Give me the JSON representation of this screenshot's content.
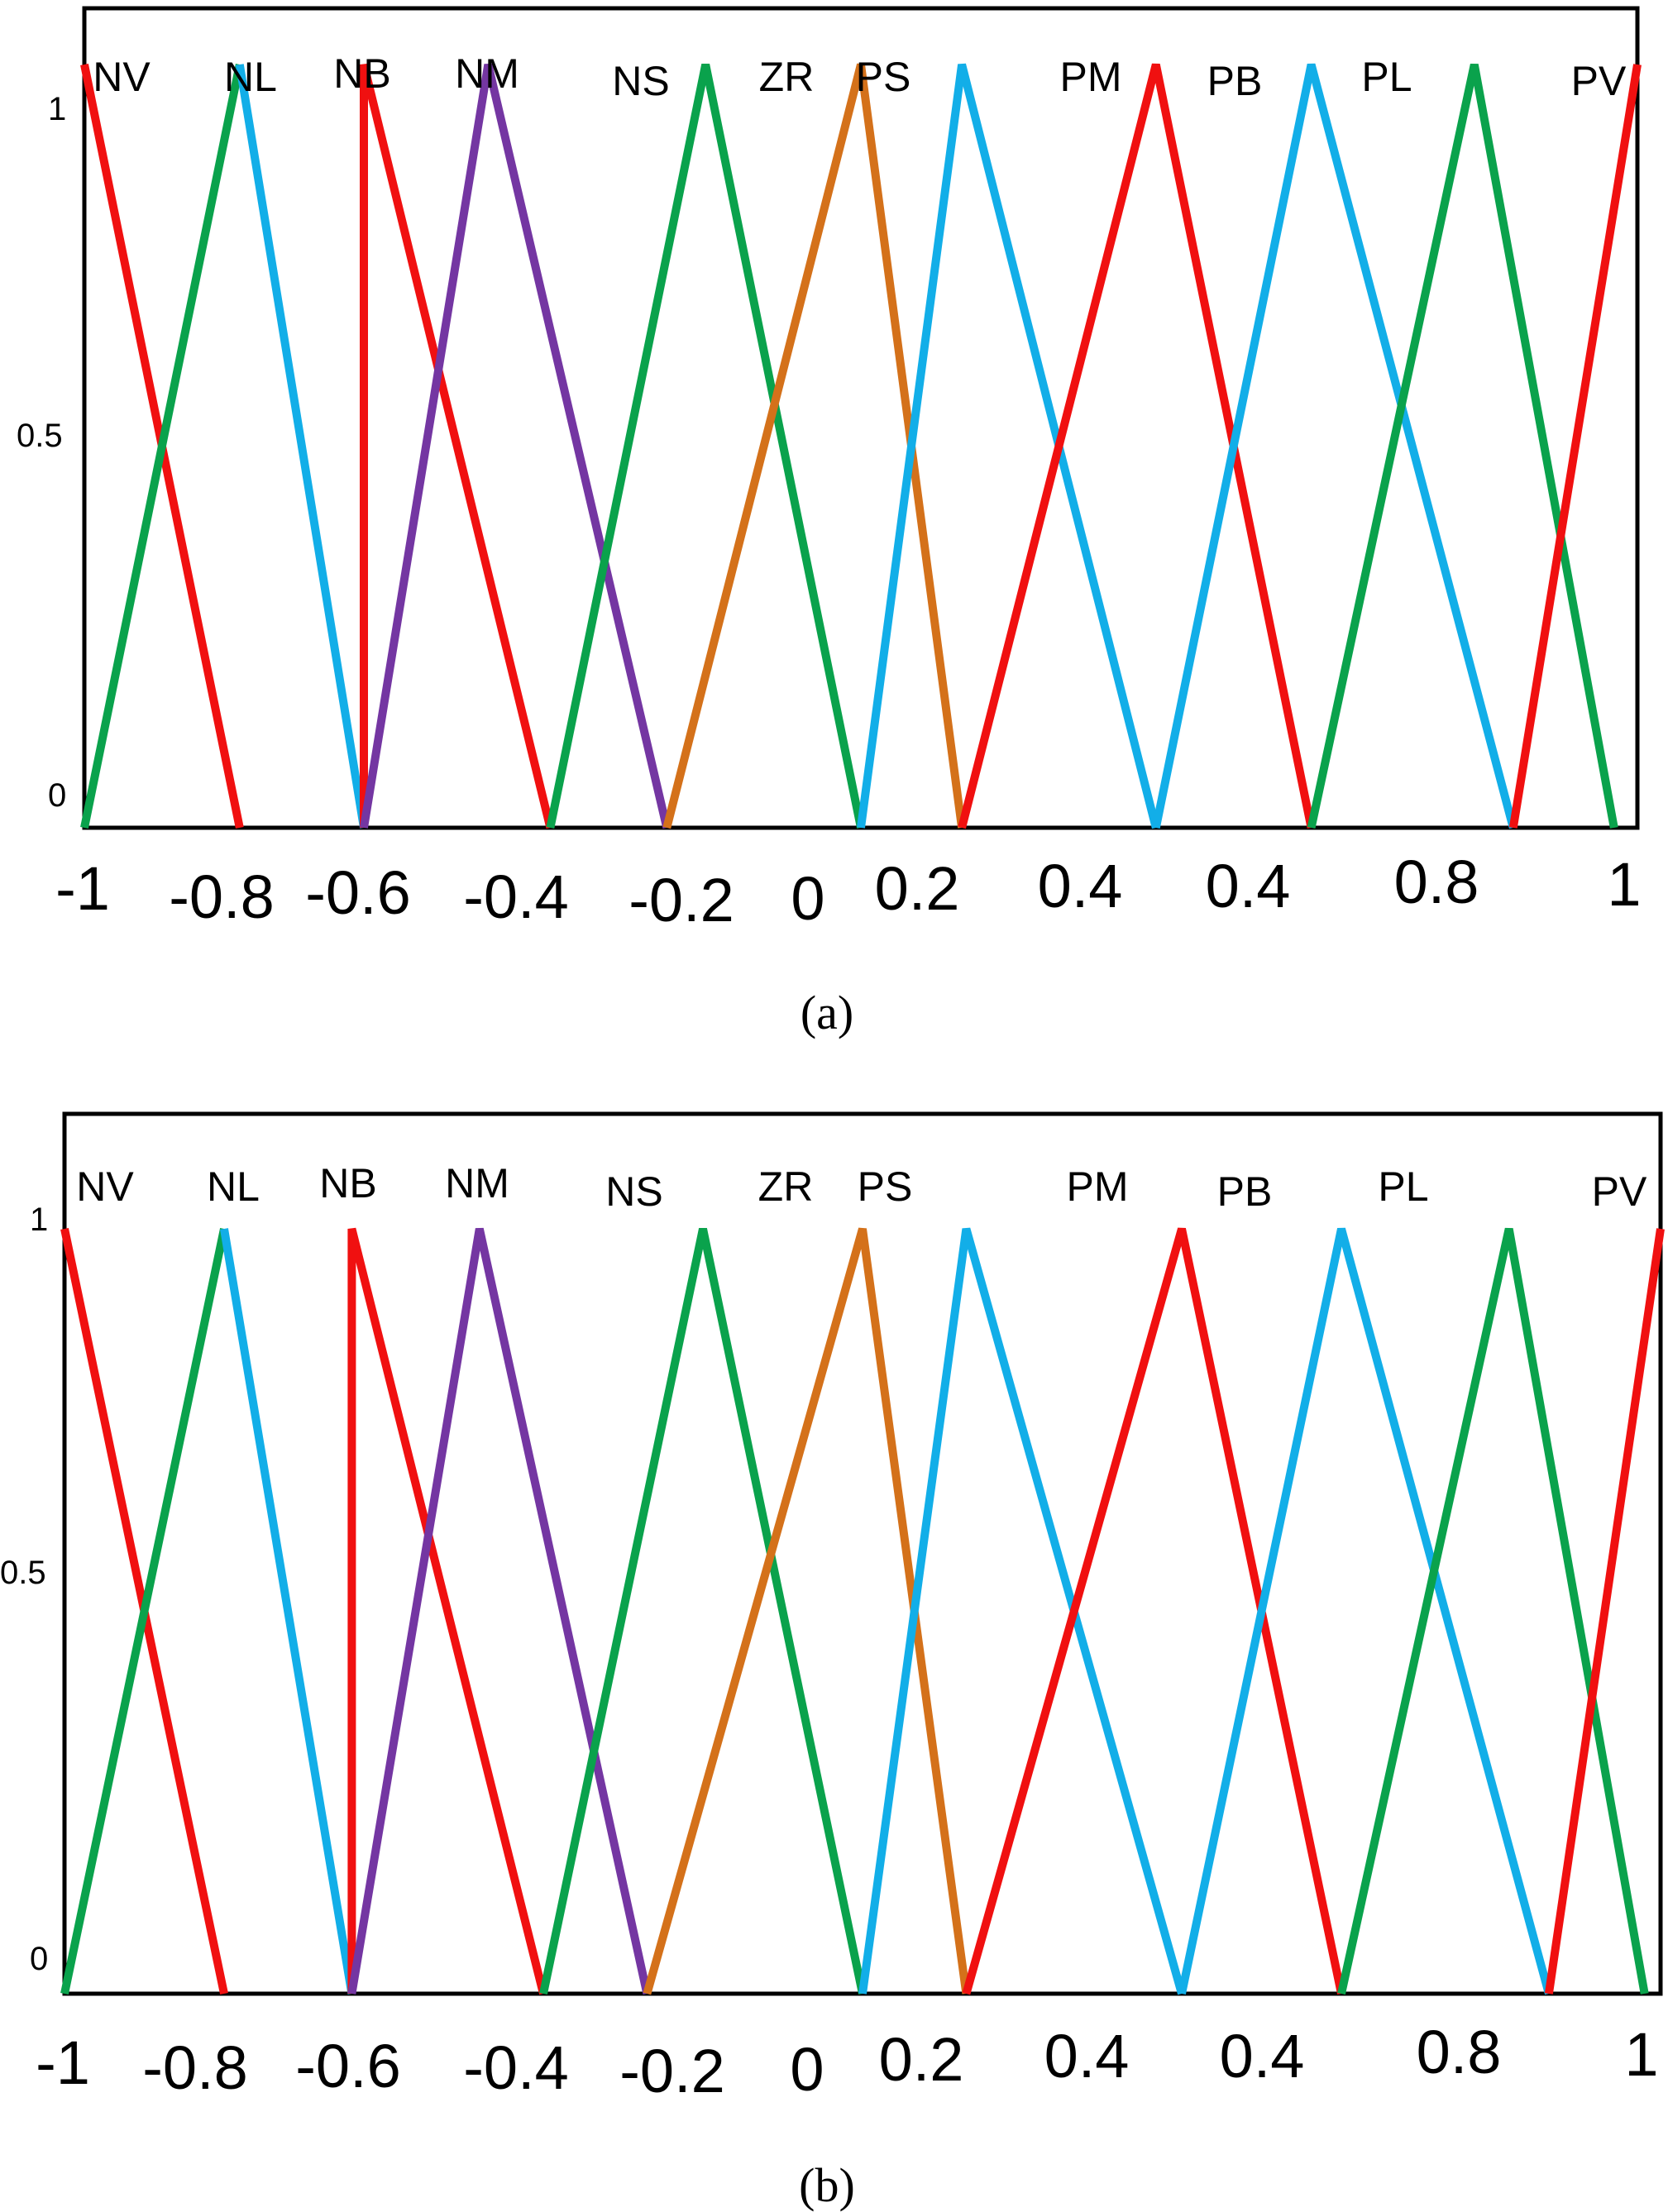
{
  "colors": {
    "red": "#f01010",
    "green": "#0aa24c",
    "blue": "#12aee8",
    "purple": "#7436a2",
    "orange": "#d4711a"
  },
  "chart_data": [
    {
      "type": "line",
      "caption": "(a)",
      "x_tick_labels": [
        "-1",
        "-0.8",
        "-0.6",
        "-0.4",
        "-0.2",
        "0",
        "0.2",
        "0.4",
        "0.4",
        "0.8",
        "1"
      ],
      "y_tick_labels": [
        "0",
        "0.5",
        "1"
      ],
      "ylim": [
        0,
        1
      ],
      "grid": false,
      "series": [
        {
          "name": "NV",
          "color": "red",
          "points": [
            [
              -1,
              1
            ],
            [
              -0.8,
              0
            ]
          ]
        },
        {
          "name": "NL",
          "color": "green",
          "points": [
            [
              -1,
              0
            ],
            [
              -0.8,
              1
            ]
          ]
        },
        {
          "name": "NL",
          "color": "blue",
          "points": [
            [
              -0.8,
              1
            ],
            [
              -0.64,
              0
            ]
          ]
        },
        {
          "name": "NB",
          "color": "red",
          "points": [
            [
              -0.64,
              0
            ],
            [
              -0.64,
              1
            ],
            [
              -0.4,
              0
            ]
          ]
        },
        {
          "name": "NM",
          "color": "purple",
          "points": [
            [
              -0.64,
              0
            ],
            [
              -0.48,
              1
            ],
            [
              -0.25,
              0
            ]
          ]
        },
        {
          "name": "NS",
          "color": "green",
          "points": [
            [
              -0.4,
              0
            ],
            [
              -0.2,
              1
            ],
            [
              0,
              0
            ]
          ]
        },
        {
          "name": "ZR",
          "color": "orange",
          "points": [
            [
              -0.25,
              0
            ],
            [
              0,
              1
            ],
            [
              0.13,
              0
            ]
          ]
        },
        {
          "name": "PS",
          "color": "blue",
          "points": [
            [
              0,
              0
            ],
            [
              0.13,
              1
            ],
            [
              0.38,
              0
            ]
          ]
        },
        {
          "name": "PM",
          "color": "red",
          "points": [
            [
              0.13,
              0
            ],
            [
              0.38,
              1
            ],
            [
              0.58,
              0
            ]
          ]
        },
        {
          "name": "PB",
          "color": "blue",
          "points": [
            [
              0.38,
              0
            ],
            [
              0.58,
              1
            ],
            [
              0.84,
              0
            ]
          ]
        },
        {
          "name": "PL",
          "color": "green",
          "points": [
            [
              0.58,
              0
            ],
            [
              0.79,
              1
            ],
            [
              0.97,
              0
            ]
          ]
        },
        {
          "name": "PV",
          "color": "red",
          "points": [
            [
              0.84,
              0
            ],
            [
              1,
              1
            ]
          ]
        }
      ]
    },
    {
      "type": "line",
      "caption": "(b)",
      "x_tick_labels": [
        "-1",
        "-0.8",
        "-0.6",
        "-0.4",
        "-0.2",
        "0",
        "0.2",
        "0.4",
        "0.4",
        "0.8",
        "1"
      ],
      "y_tick_labels": [
        "0",
        "0.5",
        "1"
      ],
      "ylim": [
        0,
        1
      ],
      "grid": false,
      "series": [
        {
          "name": "NV",
          "color": "red",
          "points": [
            [
              -1,
              1
            ],
            [
              -0.8,
              0
            ]
          ]
        },
        {
          "name": "NL",
          "color": "green",
          "points": [
            [
              -1,
              0
            ],
            [
              -0.8,
              1
            ]
          ]
        },
        {
          "name": "NL",
          "color": "blue",
          "points": [
            [
              -0.8,
              1
            ],
            [
              -0.64,
              0
            ]
          ]
        },
        {
          "name": "NB",
          "color": "red",
          "points": [
            [
              -0.64,
              0
            ],
            [
              -0.64,
              1
            ],
            [
              -0.4,
              0
            ]
          ]
        },
        {
          "name": "NM",
          "color": "purple",
          "points": [
            [
              -0.64,
              0
            ],
            [
              -0.48,
              1
            ],
            [
              -0.27,
              0
            ]
          ]
        },
        {
          "name": "NS",
          "color": "green",
          "points": [
            [
              -0.4,
              0
            ],
            [
              -0.2,
              1
            ],
            [
              0,
              0
            ]
          ]
        },
        {
          "name": "ZR",
          "color": "orange",
          "points": [
            [
              -0.27,
              0
            ],
            [
              0,
              1
            ],
            [
              0.13,
              0
            ]
          ]
        },
        {
          "name": "PS",
          "color": "blue",
          "points": [
            [
              0,
              0
            ],
            [
              0.13,
              1
            ],
            [
              0.4,
              0
            ]
          ]
        },
        {
          "name": "PM",
          "color": "red",
          "points": [
            [
              0.13,
              0
            ],
            [
              0.4,
              1
            ],
            [
              0.6,
              0
            ]
          ]
        },
        {
          "name": "PB",
          "color": "blue",
          "points": [
            [
              0.4,
              0
            ],
            [
              0.6,
              1
            ],
            [
              0.86,
              0
            ]
          ]
        },
        {
          "name": "PL",
          "color": "green",
          "points": [
            [
              0.6,
              0
            ],
            [
              0.81,
              1
            ],
            [
              0.98,
              0
            ]
          ]
        },
        {
          "name": "PV",
          "color": "red",
          "points": [
            [
              0.86,
              0
            ],
            [
              1,
              1
            ]
          ]
        }
      ]
    }
  ],
  "panels": [
    {
      "caption": "(a)",
      "mf_labels": [
        "NV",
        "NL",
        "NB",
        "NM",
        "NS",
        "ZR",
        "PS",
        "PM",
        "PB",
        "PL",
        "PV"
      ],
      "y_ticks": [
        "0",
        "0.5",
        "1"
      ],
      "x_ticks": [
        "-1",
        "-0.8",
        "-0.6",
        "-0.4",
        "-0.2",
        "0",
        "0.2",
        "0.4",
        "0.4",
        "0.8",
        "1"
      ]
    },
    {
      "caption": "(b)",
      "mf_labels": [
        "NV",
        "NL",
        "NB",
        "NM",
        "NS",
        "ZR",
        "PS",
        "PM",
        "PB",
        "PL",
        "PV"
      ],
      "y_ticks": [
        "0",
        "0.5",
        "1"
      ],
      "x_ticks": [
        "-1",
        "-0.8",
        "-0.6",
        "-0.4",
        "-0.2",
        "0",
        "0.2",
        "0.4",
        "0.4",
        "0.8",
        "1"
      ]
    }
  ]
}
